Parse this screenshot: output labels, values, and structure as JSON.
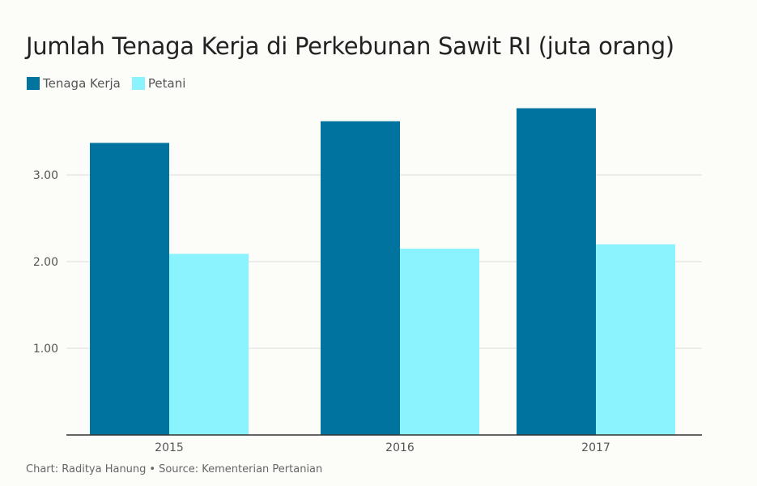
{
  "chart_data": {
    "type": "bar",
    "title": "Jumlah Tenaga Kerja di Perkebunan Sawit RI (juta orang)",
    "categories": [
      "2015",
      "2016",
      "2017"
    ],
    "series": [
      {
        "name": "Tenaga Kerja",
        "color": "#00739f",
        "values": [
          3.37,
          3.62,
          3.77
        ]
      },
      {
        "name": "Petani",
        "color": "#8af3fd",
        "values": [
          2.09,
          2.15,
          2.2
        ]
      }
    ],
    "ylim": [
      0,
      4.0
    ],
    "yticks": [
      1.0,
      2.0,
      3.0
    ],
    "ytick_labels": [
      "1.00",
      "2.00",
      "3.00"
    ],
    "grid": true,
    "legend": "top-left"
  },
  "footer": {
    "chart_credit": "Chart: Raditya Hanung",
    "separator": "•",
    "source": "Source: Kementerian Pertanian"
  }
}
